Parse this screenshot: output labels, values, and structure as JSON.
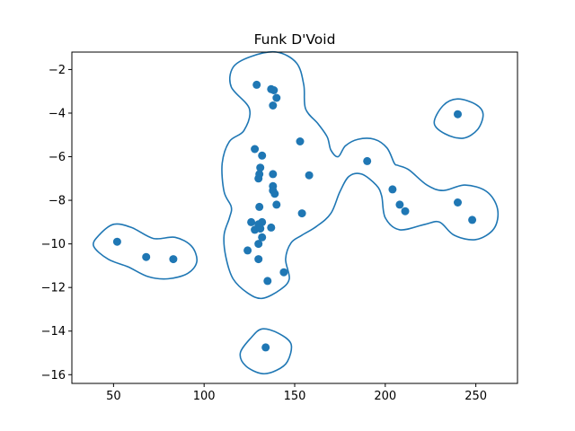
{
  "chart_data": {
    "type": "scatter",
    "title": "Funk D'Void",
    "xlabel": "",
    "ylabel": "",
    "xlim": [
      27,
      273
    ],
    "ylim": [
      -16.4,
      -1.2
    ],
    "xticks": [
      50,
      100,
      150,
      200,
      250
    ],
    "yticks": [
      -16,
      -14,
      -12,
      -10,
      -8,
      -6,
      -4,
      -2
    ],
    "grid": false,
    "color": "#1f77b4",
    "points": [
      {
        "x": 52,
        "y": -9.9
      },
      {
        "x": 68,
        "y": -10.6
      },
      {
        "x": 83,
        "y": -10.7
      },
      {
        "x": 129,
        "y": -2.7
      },
      {
        "x": 137,
        "y": -2.9
      },
      {
        "x": 138.5,
        "y": -2.95
      },
      {
        "x": 140,
        "y": -3.3
      },
      {
        "x": 138,
        "y": -3.65
      },
      {
        "x": 128,
        "y": -5.65
      },
      {
        "x": 132,
        "y": -5.95
      },
      {
        "x": 131,
        "y": -6.5
      },
      {
        "x": 130.5,
        "y": -6.8
      },
      {
        "x": 130,
        "y": -7.0
      },
      {
        "x": 138,
        "y": -6.8
      },
      {
        "x": 138,
        "y": -7.35
      },
      {
        "x": 138,
        "y": -7.55
      },
      {
        "x": 139,
        "y": -7.7
      },
      {
        "x": 140,
        "y": -8.2
      },
      {
        "x": 130.5,
        "y": -8.3
      },
      {
        "x": 126,
        "y": -9.0
      },
      {
        "x": 132,
        "y": -9.0
      },
      {
        "x": 130,
        "y": -9.1
      },
      {
        "x": 128,
        "y": -9.35
      },
      {
        "x": 131,
        "y": -9.3
      },
      {
        "x": 137,
        "y": -9.25
      },
      {
        "x": 132,
        "y": -9.7
      },
      {
        "x": 130,
        "y": -10.0
      },
      {
        "x": 124,
        "y": -10.3
      },
      {
        "x": 130,
        "y": -10.7
      },
      {
        "x": 144,
        "y": -11.3
      },
      {
        "x": 135,
        "y": -11.7
      },
      {
        "x": 134,
        "y": -14.75
      },
      {
        "x": 153,
        "y": -5.3
      },
      {
        "x": 158,
        "y": -6.85
      },
      {
        "x": 154,
        "y": -8.6
      },
      {
        "x": 190,
        "y": -6.2
      },
      {
        "x": 204,
        "y": -7.5
      },
      {
        "x": 208,
        "y": -8.2
      },
      {
        "x": 211,
        "y": -8.5
      },
      {
        "x": 240,
        "y": -4.05
      },
      {
        "x": 240,
        "y": -8.1
      },
      {
        "x": 248,
        "y": -8.9
      }
    ],
    "contours": [
      [
        [
          42,
          -9.6
        ],
        [
          50,
          -9.1
        ],
        [
          60,
          -9.25
        ],
        [
          72,
          -9.75
        ],
        [
          84,
          -9.7
        ],
        [
          93,
          -10.1
        ],
        [
          96,
          -10.8
        ],
        [
          91,
          -11.35
        ],
        [
          80,
          -11.6
        ],
        [
          69,
          -11.5
        ],
        [
          58,
          -11.05
        ],
        [
          47,
          -10.7
        ],
        [
          39,
          -10.1
        ]
      ],
      [
        [
          126,
          -1.4
        ],
        [
          140,
          -1.2
        ],
        [
          151,
          -1.7
        ],
        [
          155,
          -2.7
        ],
        [
          156,
          -3.8
        ],
        [
          163,
          -4.5
        ],
        [
          168,
          -5.1
        ],
        [
          170,
          -5.7
        ],
        [
          174,
          -6.0
        ],
        [
          178,
          -5.5
        ],
        [
          185,
          -5.2
        ],
        [
          194,
          -5.2
        ],
        [
          201,
          -5.6
        ],
        [
          205,
          -6.3
        ],
        [
          207,
          -6.4
        ],
        [
          213,
          -6.6
        ],
        [
          223,
          -7.3
        ],
        [
          232,
          -7.55
        ],
        [
          244,
          -7.3
        ],
        [
          256,
          -7.6
        ],
        [
          262,
          -8.4
        ],
        [
          260,
          -9.3
        ],
        [
          250,
          -9.8
        ],
        [
          238,
          -9.6
        ],
        [
          230,
          -9.0
        ],
        [
          222,
          -9.1
        ],
        [
          208,
          -9.35
        ],
        [
          200,
          -8.8
        ],
        [
          198,
          -7.8
        ],
        [
          195,
          -7.3
        ],
        [
          187,
          -6.8
        ],
        [
          180,
          -6.9
        ],
        [
          175,
          -7.6
        ],
        [
          170,
          -8.6
        ],
        [
          162,
          -9.2
        ],
        [
          154,
          -9.6
        ],
        [
          148,
          -9.95
        ],
        [
          145,
          -10.7
        ],
        [
          147,
          -11.6
        ],
        [
          142,
          -12.1
        ],
        [
          132,
          -12.5
        ],
        [
          124,
          -12.25
        ],
        [
          116,
          -11.6
        ],
        [
          112,
          -10.6
        ],
        [
          111,
          -9.6
        ],
        [
          114,
          -8.8
        ],
        [
          115,
          -8.3
        ],
        [
          111,
          -7.6
        ],
        [
          110,
          -6.3
        ],
        [
          114,
          -5.3
        ],
        [
          122,
          -4.8
        ],
        [
          125,
          -3.8
        ],
        [
          115,
          -2.8
        ],
        [
          116,
          -1.9
        ]
      ],
      [
        [
          126,
          -14.3
        ],
        [
          132,
          -13.9
        ],
        [
          141,
          -14.1
        ],
        [
          148,
          -14.6
        ],
        [
          146,
          -15.4
        ],
        [
          140,
          -15.8
        ],
        [
          132,
          -15.95
        ],
        [
          123,
          -15.6
        ],
        [
          120,
          -15.0
        ]
      ],
      [
        [
          232,
          -3.65
        ],
        [
          240,
          -3.35
        ],
        [
          250,
          -3.6
        ],
        [
          254,
          -4.05
        ],
        [
          251,
          -4.75
        ],
        [
          243,
          -5.15
        ],
        [
          233,
          -4.95
        ],
        [
          227,
          -4.45
        ]
      ]
    ]
  }
}
